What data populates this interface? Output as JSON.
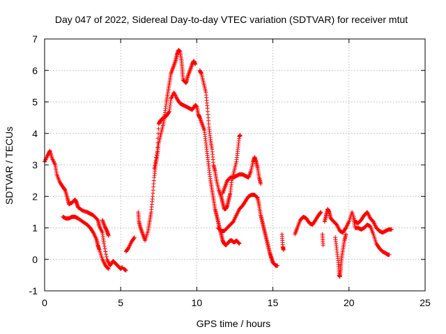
{
  "chart_data": {
    "type": "scatter",
    "title": "Day 047 of 2022, Sidereal Day-to-day VTEC variation (SDTVAR) for receiver mtut",
    "xlabel": "GPS time / hours",
    "ylabel": "SDTVAR / TECUs",
    "xlim": [
      0,
      25
    ],
    "ylim": [
      -1,
      7
    ],
    "xticks": [
      0,
      5,
      10,
      15,
      20,
      25
    ],
    "xtick_labels": [
      "0",
      "5",
      "10",
      "15",
      "20",
      "25"
    ],
    "yticks": [
      -1,
      0,
      1,
      2,
      3,
      4,
      5,
      6,
      7
    ],
    "ytick_labels": [
      "-1",
      "0",
      "1",
      "2",
      "3",
      "4",
      "5",
      "6",
      "7"
    ],
    "grid": true,
    "marker": "plus",
    "color": "#ff0000",
    "series": [
      {
        "name": "SDTVAR",
        "segments": [
          [
            [
              0.0,
              3.1
            ],
            [
              0.2,
              3.3
            ],
            [
              0.35,
              3.45
            ],
            [
              0.5,
              3.2
            ],
            [
              0.7,
              3.0
            ],
            [
              0.8,
              2.7
            ],
            [
              1.0,
              2.45
            ],
            [
              1.2,
              2.3
            ],
            [
              1.35,
              2.2
            ],
            [
              1.5,
              1.95
            ],
            [
              1.6,
              1.75
            ],
            [
              1.8,
              1.8
            ],
            [
              2.0,
              1.9
            ],
            [
              2.1,
              1.8
            ],
            [
              2.2,
              1.65
            ],
            [
              2.5,
              1.55
            ],
            [
              2.8,
              1.5
            ],
            [
              3.0,
              1.45
            ],
            [
              3.2,
              1.4
            ],
            [
              3.5,
              1.25
            ],
            [
              3.6,
              1.05
            ],
            [
              3.8,
              0.85
            ],
            [
              3.9,
              0.5
            ],
            [
              4.1,
              0.0
            ],
            [
              4.3,
              -0.2
            ],
            [
              4.5,
              -0.05
            ],
            [
              4.7,
              -0.15
            ],
            [
              4.8,
              -0.2
            ],
            [
              5.0,
              -0.3
            ],
            [
              5.1,
              -0.25
            ]
          ],
          [
            [
              1.2,
              1.35
            ],
            [
              1.4,
              1.3
            ],
            [
              1.6,
              1.3
            ],
            [
              1.8,
              1.35
            ],
            [
              2.0,
              1.35
            ],
            [
              2.2,
              1.3
            ],
            [
              2.5,
              1.2
            ],
            [
              2.8,
              1.1
            ],
            [
              3.0,
              1.0
            ],
            [
              3.2,
              0.85
            ],
            [
              3.4,
              0.65
            ],
            [
              3.5,
              0.45
            ],
            [
              3.6,
              0.3
            ],
            [
              3.8,
              0.0
            ],
            [
              4.0,
              -0.2
            ],
            [
              4.2,
              -0.3
            ]
          ],
          [
            [
              3.8,
              1.25
            ],
            [
              3.95,
              1.05
            ],
            [
              4.1,
              0.9
            ],
            [
              4.2,
              0.75
            ]
          ],
          [
            [
              5.2,
              -0.3
            ],
            [
              5.35,
              -0.35
            ]
          ],
          [
            [
              5.35,
              0.25
            ],
            [
              5.5,
              0.35
            ],
            [
              5.7,
              0.55
            ],
            [
              5.9,
              0.7
            ]
          ],
          [
            [
              6.15,
              1.5
            ],
            [
              6.2,
              1.2
            ],
            [
              6.3,
              1.0
            ],
            [
              6.45,
              0.8
            ],
            [
              6.6,
              0.6
            ],
            [
              6.8,
              0.9
            ],
            [
              6.9,
              1.2
            ],
            [
              7.0,
              1.5
            ],
            [
              7.1,
              2.0
            ],
            [
              7.2,
              2.6
            ],
            [
              7.3,
              3.0
            ],
            [
              7.4,
              3.3
            ],
            [
              7.5,
              3.7
            ],
            [
              7.65,
              4.0
            ],
            [
              7.8,
              4.3
            ],
            [
              7.9,
              4.6
            ],
            [
              8.0,
              5.0
            ],
            [
              8.1,
              5.3
            ],
            [
              8.2,
              5.6
            ],
            [
              8.3,
              5.9
            ],
            [
              8.45,
              6.1
            ],
            [
              8.6,
              6.3
            ],
            [
              8.7,
              6.5
            ],
            [
              8.8,
              6.65
            ],
            [
              8.9,
              6.6
            ],
            [
              9.0,
              6.3
            ],
            [
              9.05,
              6.0
            ],
            [
              9.1,
              5.7
            ],
            [
              9.3,
              5.6
            ],
            [
              9.4,
              5.8
            ],
            [
              9.55,
              6.0
            ],
            [
              9.7,
              6.2
            ],
            [
              9.8,
              6.3
            ],
            [
              9.9,
              6.2
            ]
          ],
          [
            [
              7.2,
              2.9
            ],
            [
              7.4,
              3.4
            ],
            [
              7.5,
              4.3
            ],
            [
              7.6,
              4.4
            ],
            [
              7.8,
              4.5
            ],
            [
              8.0,
              4.55
            ],
            [
              8.2,
              4.7
            ],
            [
              8.3,
              5.1
            ],
            [
              8.5,
              5.3
            ],
            [
              8.7,
              5.1
            ],
            [
              8.9,
              4.95
            ],
            [
              9.1,
              4.9
            ],
            [
              9.3,
              4.85
            ],
            [
              9.5,
              4.8
            ],
            [
              9.7,
              4.75
            ],
            [
              9.9,
              4.9
            ],
            [
              10.0,
              4.85
            ],
            [
              10.1,
              4.6
            ],
            [
              10.2,
              4.5
            ],
            [
              10.35,
              4.3
            ],
            [
              10.5,
              4.1
            ],
            [
              10.6,
              3.7
            ],
            [
              10.7,
              3.3
            ],
            [
              10.8,
              2.9
            ],
            [
              10.9,
              2.5
            ],
            [
              11.0,
              2.2
            ],
            [
              11.1,
              1.9
            ],
            [
              11.2,
              1.6
            ],
            [
              11.3,
              1.4
            ],
            [
              11.4,
              1.2
            ],
            [
              11.5,
              1.0
            ],
            [
              11.6,
              0.8
            ],
            [
              11.7,
              0.6
            ],
            [
              11.8,
              0.5
            ],
            [
              11.9,
              0.45
            ],
            [
              12.0,
              0.5
            ],
            [
              12.1,
              0.55
            ],
            [
              12.2,
              0.6
            ],
            [
              12.3,
              0.6
            ],
            [
              12.4,
              0.55
            ],
            [
              12.5,
              0.55
            ],
            [
              12.6,
              0.6
            ],
            [
              12.7,
              0.55
            ],
            [
              12.8,
              0.5
            ]
          ],
          [
            [
              10.2,
              6.0
            ],
            [
              10.3,
              5.9
            ],
            [
              10.45,
              5.6
            ],
            [
              10.6,
              5.3
            ],
            [
              10.7,
              4.8
            ],
            [
              10.8,
              4.2
            ],
            [
              10.9,
              3.8
            ],
            [
              11.0,
              3.5
            ],
            [
              11.1,
              3.0
            ],
            [
              11.2,
              2.8
            ],
            [
              11.3,
              2.5
            ],
            [
              11.45,
              2.2
            ],
            [
              11.6,
              2.0
            ],
            [
              11.7,
              1.8
            ],
            [
              11.8,
              1.6
            ],
            [
              11.9,
              1.6
            ],
            [
              12.0,
              1.7
            ],
            [
              12.1,
              1.9
            ],
            [
              12.2,
              2.1
            ],
            [
              12.3,
              2.5
            ],
            [
              12.45,
              2.8
            ],
            [
              12.6,
              3.1
            ],
            [
              12.7,
              3.5
            ],
            [
              12.8,
              3.9
            ],
            [
              12.85,
              3.95
            ]
          ],
          [
            [
              11.7,
              2.1
            ],
            [
              11.85,
              2.3
            ],
            [
              12.0,
              2.5
            ],
            [
              12.2,
              2.6
            ],
            [
              12.4,
              2.6
            ],
            [
              12.6,
              2.65
            ],
            [
              12.8,
              2.7
            ],
            [
              13.0,
              2.7
            ],
            [
              13.2,
              2.65
            ],
            [
              13.4,
              2.6
            ],
            [
              13.55,
              2.8
            ],
            [
              13.7,
              3.1
            ],
            [
              13.8,
              3.25
            ],
            [
              13.9,
              3.1
            ],
            [
              14.0,
              2.9
            ],
            [
              14.1,
              2.6
            ],
            [
              14.2,
              2.4
            ]
          ],
          [
            [
              11.4,
              1.0
            ],
            [
              11.6,
              0.9
            ],
            [
              11.8,
              0.9
            ],
            [
              12.0,
              1.0
            ],
            [
              12.2,
              1.1
            ],
            [
              12.4,
              1.2
            ],
            [
              12.6,
              1.4
            ],
            [
              12.8,
              1.6
            ],
            [
              13.0,
              1.7
            ],
            [
              13.2,
              1.85
            ],
            [
              13.4,
              2.0
            ],
            [
              13.6,
              2.05
            ],
            [
              13.8,
              2.05
            ],
            [
              14.0,
              1.95
            ],
            [
              14.1,
              1.7
            ],
            [
              14.2,
              1.4
            ],
            [
              14.3,
              1.2
            ],
            [
              14.4,
              1.0
            ],
            [
              14.5,
              0.8
            ],
            [
              14.6,
              0.6
            ],
            [
              14.7,
              0.4
            ],
            [
              14.8,
              0.2
            ],
            [
              14.9,
              0.05
            ],
            [
              15.0,
              -0.1
            ],
            [
              15.1,
              -0.15
            ],
            [
              15.2,
              -0.2
            ],
            [
              15.3,
              -0.2
            ]
          ],
          [
            [
              15.6,
              0.8
            ],
            [
              15.65,
              0.4
            ],
            [
              15.7,
              0.3
            ]
          ],
          [
            [
              16.45,
              0.8
            ],
            [
              16.6,
              1.0
            ],
            [
              16.8,
              1.25
            ],
            [
              17.0,
              1.35
            ],
            [
              17.2,
              1.3
            ],
            [
              17.4,
              1.15
            ],
            [
              17.6,
              1.1
            ],
            [
              17.8,
              1.25
            ],
            [
              18.0,
              1.4
            ],
            [
              18.15,
              1.5
            ]
          ],
          [
            [
              18.25,
              0.8
            ],
            [
              18.3,
              0.45
            ]
          ],
          [
            [
              18.4,
              1.2
            ],
            [
              18.5,
              1.4
            ],
            [
              18.6,
              1.6
            ],
            [
              18.7,
              1.5
            ],
            [
              18.8,
              1.3
            ],
            [
              19.0,
              1.2
            ],
            [
              19.2,
              1.1
            ],
            [
              19.4,
              0.9
            ],
            [
              19.6,
              0.85
            ],
            [
              19.8,
              1.0
            ],
            [
              20.0,
              1.2
            ],
            [
              20.2,
              1.5
            ],
            [
              20.4,
              1.2
            ],
            [
              20.6,
              1.15
            ],
            [
              20.8,
              1.25
            ],
            [
              21.0,
              1.4
            ],
            [
              21.2,
              1.5
            ],
            [
              21.4,
              1.3
            ],
            [
              21.6,
              1.2
            ],
            [
              21.8,
              1.0
            ],
            [
              22.0,
              0.9
            ],
            [
              22.2,
              0.85
            ],
            [
              22.4,
              0.9
            ],
            [
              22.6,
              0.95
            ],
            [
              22.8,
              0.95
            ]
          ],
          [
            [
              19.1,
              0.7
            ],
            [
              19.2,
              0.3
            ],
            [
              19.3,
              -0.1
            ],
            [
              19.35,
              -0.5
            ],
            [
              19.4,
              -0.55
            ],
            [
              19.45,
              -0.3
            ],
            [
              19.5,
              0.0
            ],
            [
              19.6,
              0.3
            ],
            [
              19.7,
              0.6
            ],
            [
              19.8,
              0.8
            ]
          ],
          [
            [
              20.3,
              1.3
            ],
            [
              20.4,
              1.0
            ],
            [
              20.6,
              1.0
            ],
            [
              20.8,
              0.95
            ],
            [
              21.0,
              1.0
            ],
            [
              21.2,
              1.1
            ],
            [
              21.4,
              1.05
            ],
            [
              21.6,
              0.8
            ],
            [
              21.8,
              0.5
            ],
            [
              22.0,
              0.35
            ],
            [
              22.2,
              0.25
            ],
            [
              22.4,
              0.2
            ],
            [
              22.55,
              0.15
            ],
            [
              22.65,
              0.15
            ]
          ]
        ]
      }
    ]
  }
}
